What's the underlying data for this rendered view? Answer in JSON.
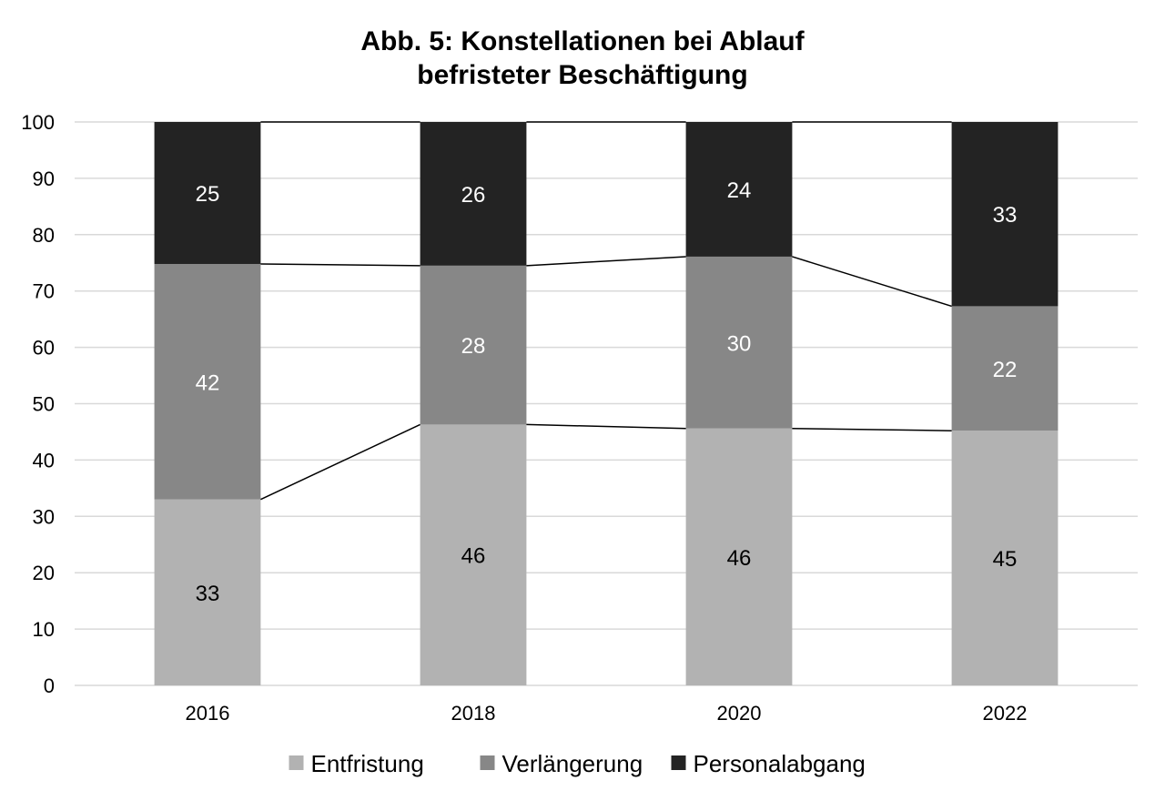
{
  "chart_data": {
    "type": "bar",
    "stacked": true,
    "title": [
      "Abb. 5: Konstellationen bei Ablauf",
      "befristeter Beschäftigung"
    ],
    "categories": [
      "2016",
      "2018",
      "2020",
      "2022"
    ],
    "series": [
      {
        "name": "Entfristung",
        "values": [
          33,
          46,
          46,
          45
        ],
        "plot_values": [
          33,
          46.3,
          45.6,
          45.2
        ],
        "color": "#b2b2b2",
        "label_color": "#000000"
      },
      {
        "name": "Verlängerung",
        "values": [
          42,
          28,
          30,
          22
        ],
        "plot_values": [
          41.8,
          28.2,
          30.5,
          22.1
        ],
        "color": "#878787",
        "label_color": "#ffffff"
      },
      {
        "name": "Personalabgang",
        "values": [
          25,
          26,
          24,
          33
        ],
        "plot_values": [
          25.2,
          25.5,
          23.9,
          32.7
        ],
        "color": "#232323",
        "label_color": "#ffffff"
      }
    ],
    "ylim": [
      0,
      100
    ],
    "yticks": [
      0,
      10,
      20,
      30,
      40,
      50,
      60,
      70,
      80,
      90,
      100
    ],
    "xlabel": "",
    "ylabel": "",
    "grid": true,
    "series_lines": true,
    "legend": "bottom"
  }
}
